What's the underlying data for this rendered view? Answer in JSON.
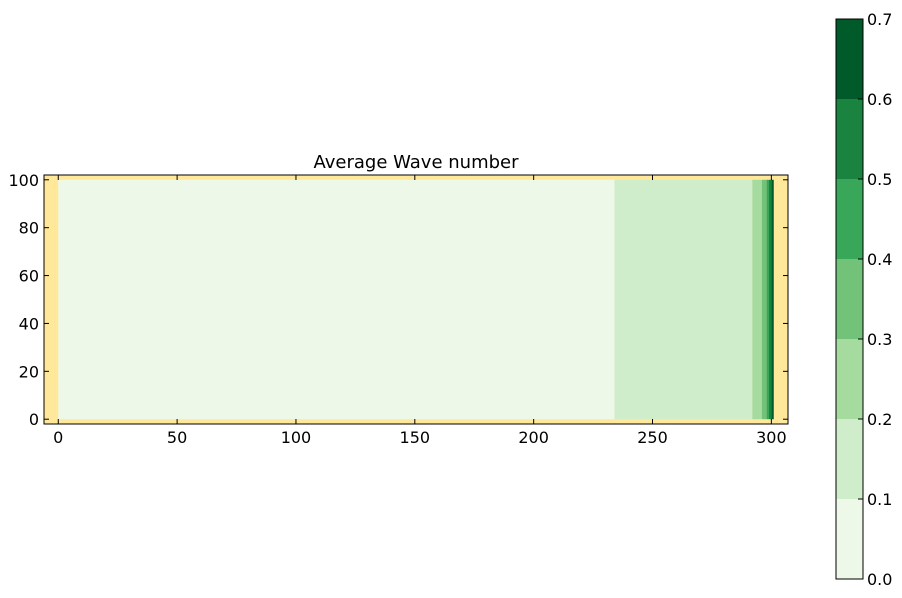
{
  "chart_data": {
    "type": "heatmap",
    "title": "Average Wave number",
    "xlabel": "",
    "ylabel": "",
    "xlim": [
      -6,
      307
    ],
    "ylim": [
      -2,
      102
    ],
    "xticks": [
      0,
      50,
      100,
      150,
      200,
      250,
      300
    ],
    "xtick_labels": [
      "0",
      "50",
      "100",
      "150",
      "200",
      "250",
      "300"
    ],
    "yticks": [
      0,
      20,
      40,
      60,
      80,
      100
    ],
    "ytick_labels": [
      "0",
      "20",
      "40",
      "60",
      "80",
      "100"
    ],
    "grid": false,
    "background_color": "#ffe89a",
    "regions": [
      {
        "x0": 0,
        "x1": 234,
        "y0": 0,
        "y1": 100,
        "value": 0.05
      },
      {
        "x0": 234,
        "x1": 292,
        "y0": 0,
        "y1": 100,
        "value": 0.15
      },
      {
        "x0": 292,
        "x1": 296,
        "y0": 0,
        "y1": 100,
        "value": 0.25
      },
      {
        "x0": 296,
        "x1": 298,
        "y0": 0,
        "y1": 100,
        "value": 0.35
      },
      {
        "x0": 298,
        "x1": 299,
        "y0": 0,
        "y1": 100,
        "value": 0.45
      },
      {
        "x0": 299,
        "x1": 300,
        "y0": 0,
        "y1": 100,
        "value": 0.55
      },
      {
        "x0": 300,
        "x1": 301,
        "y0": 0,
        "y1": 100,
        "value": 0.65
      }
    ],
    "colorbar": {
      "levels": [
        0.0,
        0.1,
        0.2,
        0.3,
        0.4,
        0.5,
        0.6,
        0.7
      ],
      "tick_labels": [
        "0.0",
        "0.1",
        "0.2",
        "0.3",
        "0.4",
        "0.5",
        "0.6",
        "0.7"
      ],
      "colors": [
        "#edf8e9",
        "#cfedca",
        "#a6dba0",
        "#73c27a",
        "#39a75a",
        "#19833f",
        "#005a2a"
      ],
      "placement": "right"
    }
  }
}
